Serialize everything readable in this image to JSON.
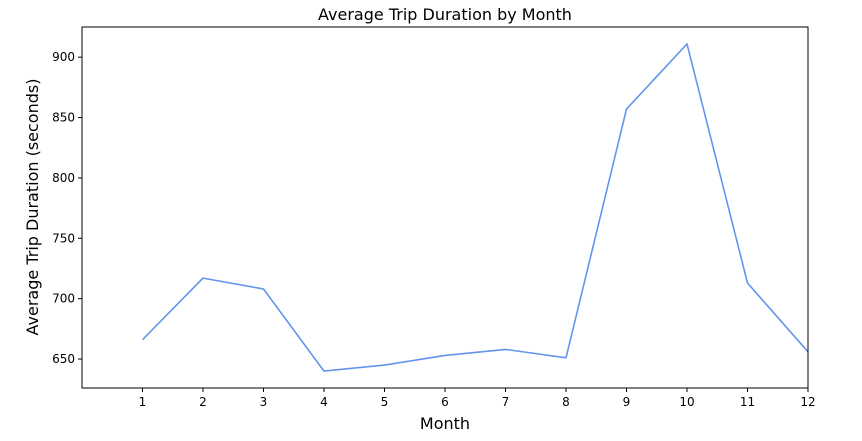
{
  "chart_data": {
    "type": "line",
    "title": "Average Trip Duration by Month",
    "xlabel": "Month",
    "ylabel": "Average Trip Duration (seconds)",
    "x": [
      1,
      2,
      3,
      4,
      5,
      6,
      7,
      8,
      9,
      10,
      11,
      12
    ],
    "series": [
      {
        "values": [
          666,
          717,
          708,
          640,
          645,
          653,
          658,
          651,
          857,
          911,
          713,
          656
        ],
        "color": "#6495ed"
      }
    ],
    "xticks": [
      "1",
      "2",
      "3",
      "4",
      "5",
      "6",
      "7",
      "8",
      "9",
      "10",
      "11",
      "12"
    ],
    "yticks": [
      650,
      700,
      750,
      800,
      850,
      900
    ],
    "xlim": [
      0,
      12
    ],
    "ylim": [
      626,
      925
    ],
    "grid": false,
    "legend": "none"
  }
}
